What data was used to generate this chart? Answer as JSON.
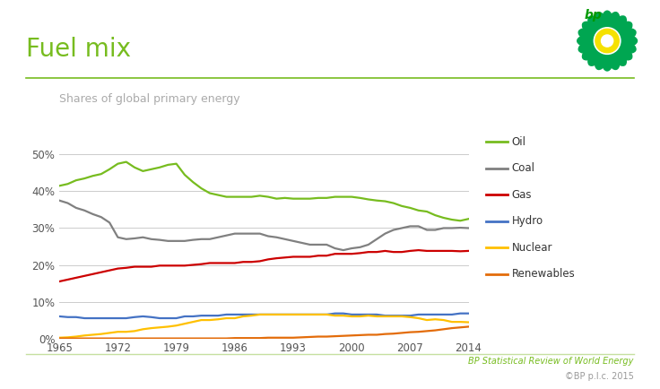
{
  "title": "Fuel mix",
  "subtitle": "Shares of global primary energy",
  "background_color": "#ffffff",
  "footer_text1": "BP Statistical Review of World Energy",
  "footer_text2": "©BP p.l.c. 2015",
  "title_color": "#77bc1f",
  "subtitle_color": "#aaaaaa",
  "footer_color1": "#77bc1f",
  "footer_color2": "#999999",
  "years": [
    1965,
    1966,
    1967,
    1968,
    1969,
    1970,
    1971,
    1972,
    1973,
    1974,
    1975,
    1976,
    1977,
    1978,
    1979,
    1980,
    1981,
    1982,
    1983,
    1984,
    1985,
    1986,
    1987,
    1988,
    1989,
    1990,
    1991,
    1992,
    1993,
    1994,
    1995,
    1996,
    1997,
    1998,
    1999,
    2000,
    2001,
    2002,
    2003,
    2004,
    2005,
    2006,
    2007,
    2008,
    2009,
    2010,
    2011,
    2012,
    2013,
    2014
  ],
  "oil": [
    41.5,
    42.0,
    43.0,
    43.5,
    44.2,
    44.7,
    46.0,
    47.5,
    48.0,
    46.5,
    45.5,
    46.0,
    46.5,
    47.2,
    47.5,
    44.5,
    42.5,
    40.8,
    39.5,
    39.0,
    38.5,
    38.5,
    38.5,
    38.5,
    38.8,
    38.5,
    38.0,
    38.2,
    38.0,
    38.0,
    38.0,
    38.2,
    38.2,
    38.5,
    38.5,
    38.5,
    38.2,
    37.8,
    37.5,
    37.3,
    36.8,
    36.0,
    35.5,
    34.8,
    34.5,
    33.5,
    32.8,
    32.3,
    32.0,
    32.5
  ],
  "coal": [
    37.5,
    36.8,
    35.5,
    34.8,
    33.8,
    33.0,
    31.5,
    27.5,
    27.0,
    27.2,
    27.5,
    27.0,
    26.8,
    26.5,
    26.5,
    26.5,
    26.8,
    27.0,
    27.0,
    27.5,
    28.0,
    28.5,
    28.5,
    28.5,
    28.5,
    27.8,
    27.5,
    27.0,
    26.5,
    26.0,
    25.5,
    25.5,
    25.5,
    24.5,
    24.0,
    24.5,
    24.8,
    25.5,
    27.0,
    28.5,
    29.5,
    30.0,
    30.5,
    30.5,
    29.5,
    29.5,
    30.0,
    30.0,
    30.1,
    30.0
  ],
  "gas": [
    15.5,
    16.0,
    16.5,
    17.0,
    17.5,
    18.0,
    18.5,
    19.0,
    19.2,
    19.5,
    19.5,
    19.5,
    19.8,
    19.8,
    19.8,
    19.8,
    20.0,
    20.2,
    20.5,
    20.5,
    20.5,
    20.5,
    20.8,
    20.8,
    21.0,
    21.5,
    21.8,
    22.0,
    22.2,
    22.2,
    22.2,
    22.5,
    22.5,
    23.0,
    23.0,
    23.0,
    23.2,
    23.5,
    23.5,
    23.8,
    23.5,
    23.5,
    23.8,
    24.0,
    23.8,
    23.8,
    23.8,
    23.8,
    23.7,
    23.8
  ],
  "hydro": [
    6.0,
    5.8,
    5.8,
    5.5,
    5.5,
    5.5,
    5.5,
    5.5,
    5.5,
    5.8,
    6.0,
    5.8,
    5.5,
    5.5,
    5.5,
    6.0,
    6.0,
    6.2,
    6.2,
    6.2,
    6.5,
    6.5,
    6.5,
    6.5,
    6.5,
    6.5,
    6.5,
    6.5,
    6.5,
    6.5,
    6.5,
    6.5,
    6.5,
    6.8,
    6.8,
    6.5,
    6.5,
    6.5,
    6.5,
    6.2,
    6.2,
    6.2,
    6.2,
    6.5,
    6.5,
    6.5,
    6.5,
    6.5,
    6.8,
    6.8
  ],
  "nuclear": [
    0.2,
    0.3,
    0.5,
    0.8,
    1.0,
    1.2,
    1.5,
    1.8,
    1.8,
    2.0,
    2.5,
    2.8,
    3.0,
    3.2,
    3.5,
    4.0,
    4.5,
    5.0,
    5.0,
    5.2,
    5.5,
    5.5,
    6.0,
    6.2,
    6.5,
    6.5,
    6.5,
    6.5,
    6.5,
    6.5,
    6.5,
    6.5,
    6.5,
    6.2,
    6.2,
    6.0,
    6.0,
    6.2,
    6.0,
    6.0,
    6.0,
    6.0,
    5.8,
    5.5,
    5.0,
    5.2,
    5.0,
    4.5,
    4.5,
    4.4
  ],
  "renewables": [
    0.0,
    0.0,
    0.0,
    0.0,
    0.0,
    0.0,
    0.0,
    0.0,
    0.0,
    0.0,
    0.0,
    0.0,
    0.0,
    0.0,
    0.0,
    0.0,
    0.0,
    0.0,
    0.0,
    0.0,
    0.0,
    0.1,
    0.1,
    0.1,
    0.1,
    0.2,
    0.2,
    0.2,
    0.2,
    0.3,
    0.4,
    0.5,
    0.5,
    0.6,
    0.7,
    0.8,
    0.9,
    1.0,
    1.0,
    1.2,
    1.3,
    1.5,
    1.7,
    1.8,
    2.0,
    2.2,
    2.5,
    2.8,
    3.0,
    3.2
  ],
  "line_colors": {
    "oil": "#77bc1f",
    "coal": "#808080",
    "gas": "#cc0000",
    "hydro": "#4472c4",
    "nuclear": "#ffc000",
    "renewables": "#e36c0a"
  },
  "legend_labels": [
    "Oil",
    "Coal",
    "Gas",
    "Hydro",
    "Nuclear",
    "Renewables"
  ],
  "yticks": [
    0,
    10,
    20,
    30,
    40,
    50
  ],
  "ytick_labels": [
    "0%",
    "10%",
    "20%",
    "30%",
    "40%",
    "50%"
  ],
  "xticks": [
    1965,
    1972,
    1979,
    1986,
    1993,
    2000,
    2007,
    2014
  ],
  "ylim": [
    0,
    55
  ],
  "xlim": [
    1965,
    2014
  ],
  "top_line_color": "#77bc1f",
  "bottom_line_color": "#c6e0a0"
}
